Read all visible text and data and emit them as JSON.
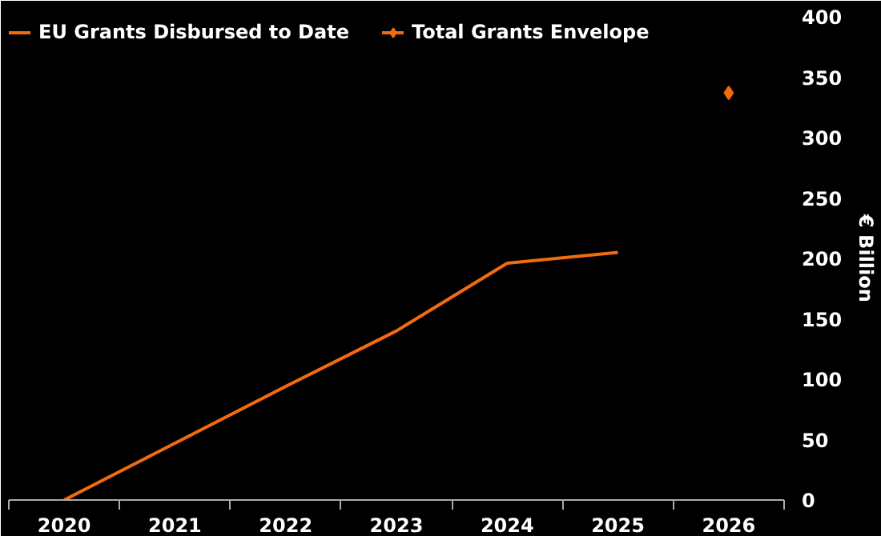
{
  "chart_data": {
    "type": "line",
    "categories": [
      "2020",
      "2021",
      "2022",
      "2023",
      "2024",
      "2025",
      "2026"
    ],
    "series": [
      {
        "name": "EU Grants Disbursed to Date",
        "color": "#f26b0f",
        "values": [
          0,
          47,
          94,
          140,
          196,
          205,
          null
        ],
        "marker": "none"
      },
      {
        "name": "Total Grants Envelope",
        "color": "#f26b0f",
        "values": [
          null,
          null,
          null,
          null,
          null,
          null,
          337
        ],
        "marker": "diamond"
      }
    ],
    "ylabel": "€ Billion",
    "ylim": [
      0,
      400
    ],
    "yticks": [
      0,
      50,
      100,
      150,
      200,
      250,
      300,
      350,
      400
    ],
    "grid": false,
    "legend": "top left"
  }
}
